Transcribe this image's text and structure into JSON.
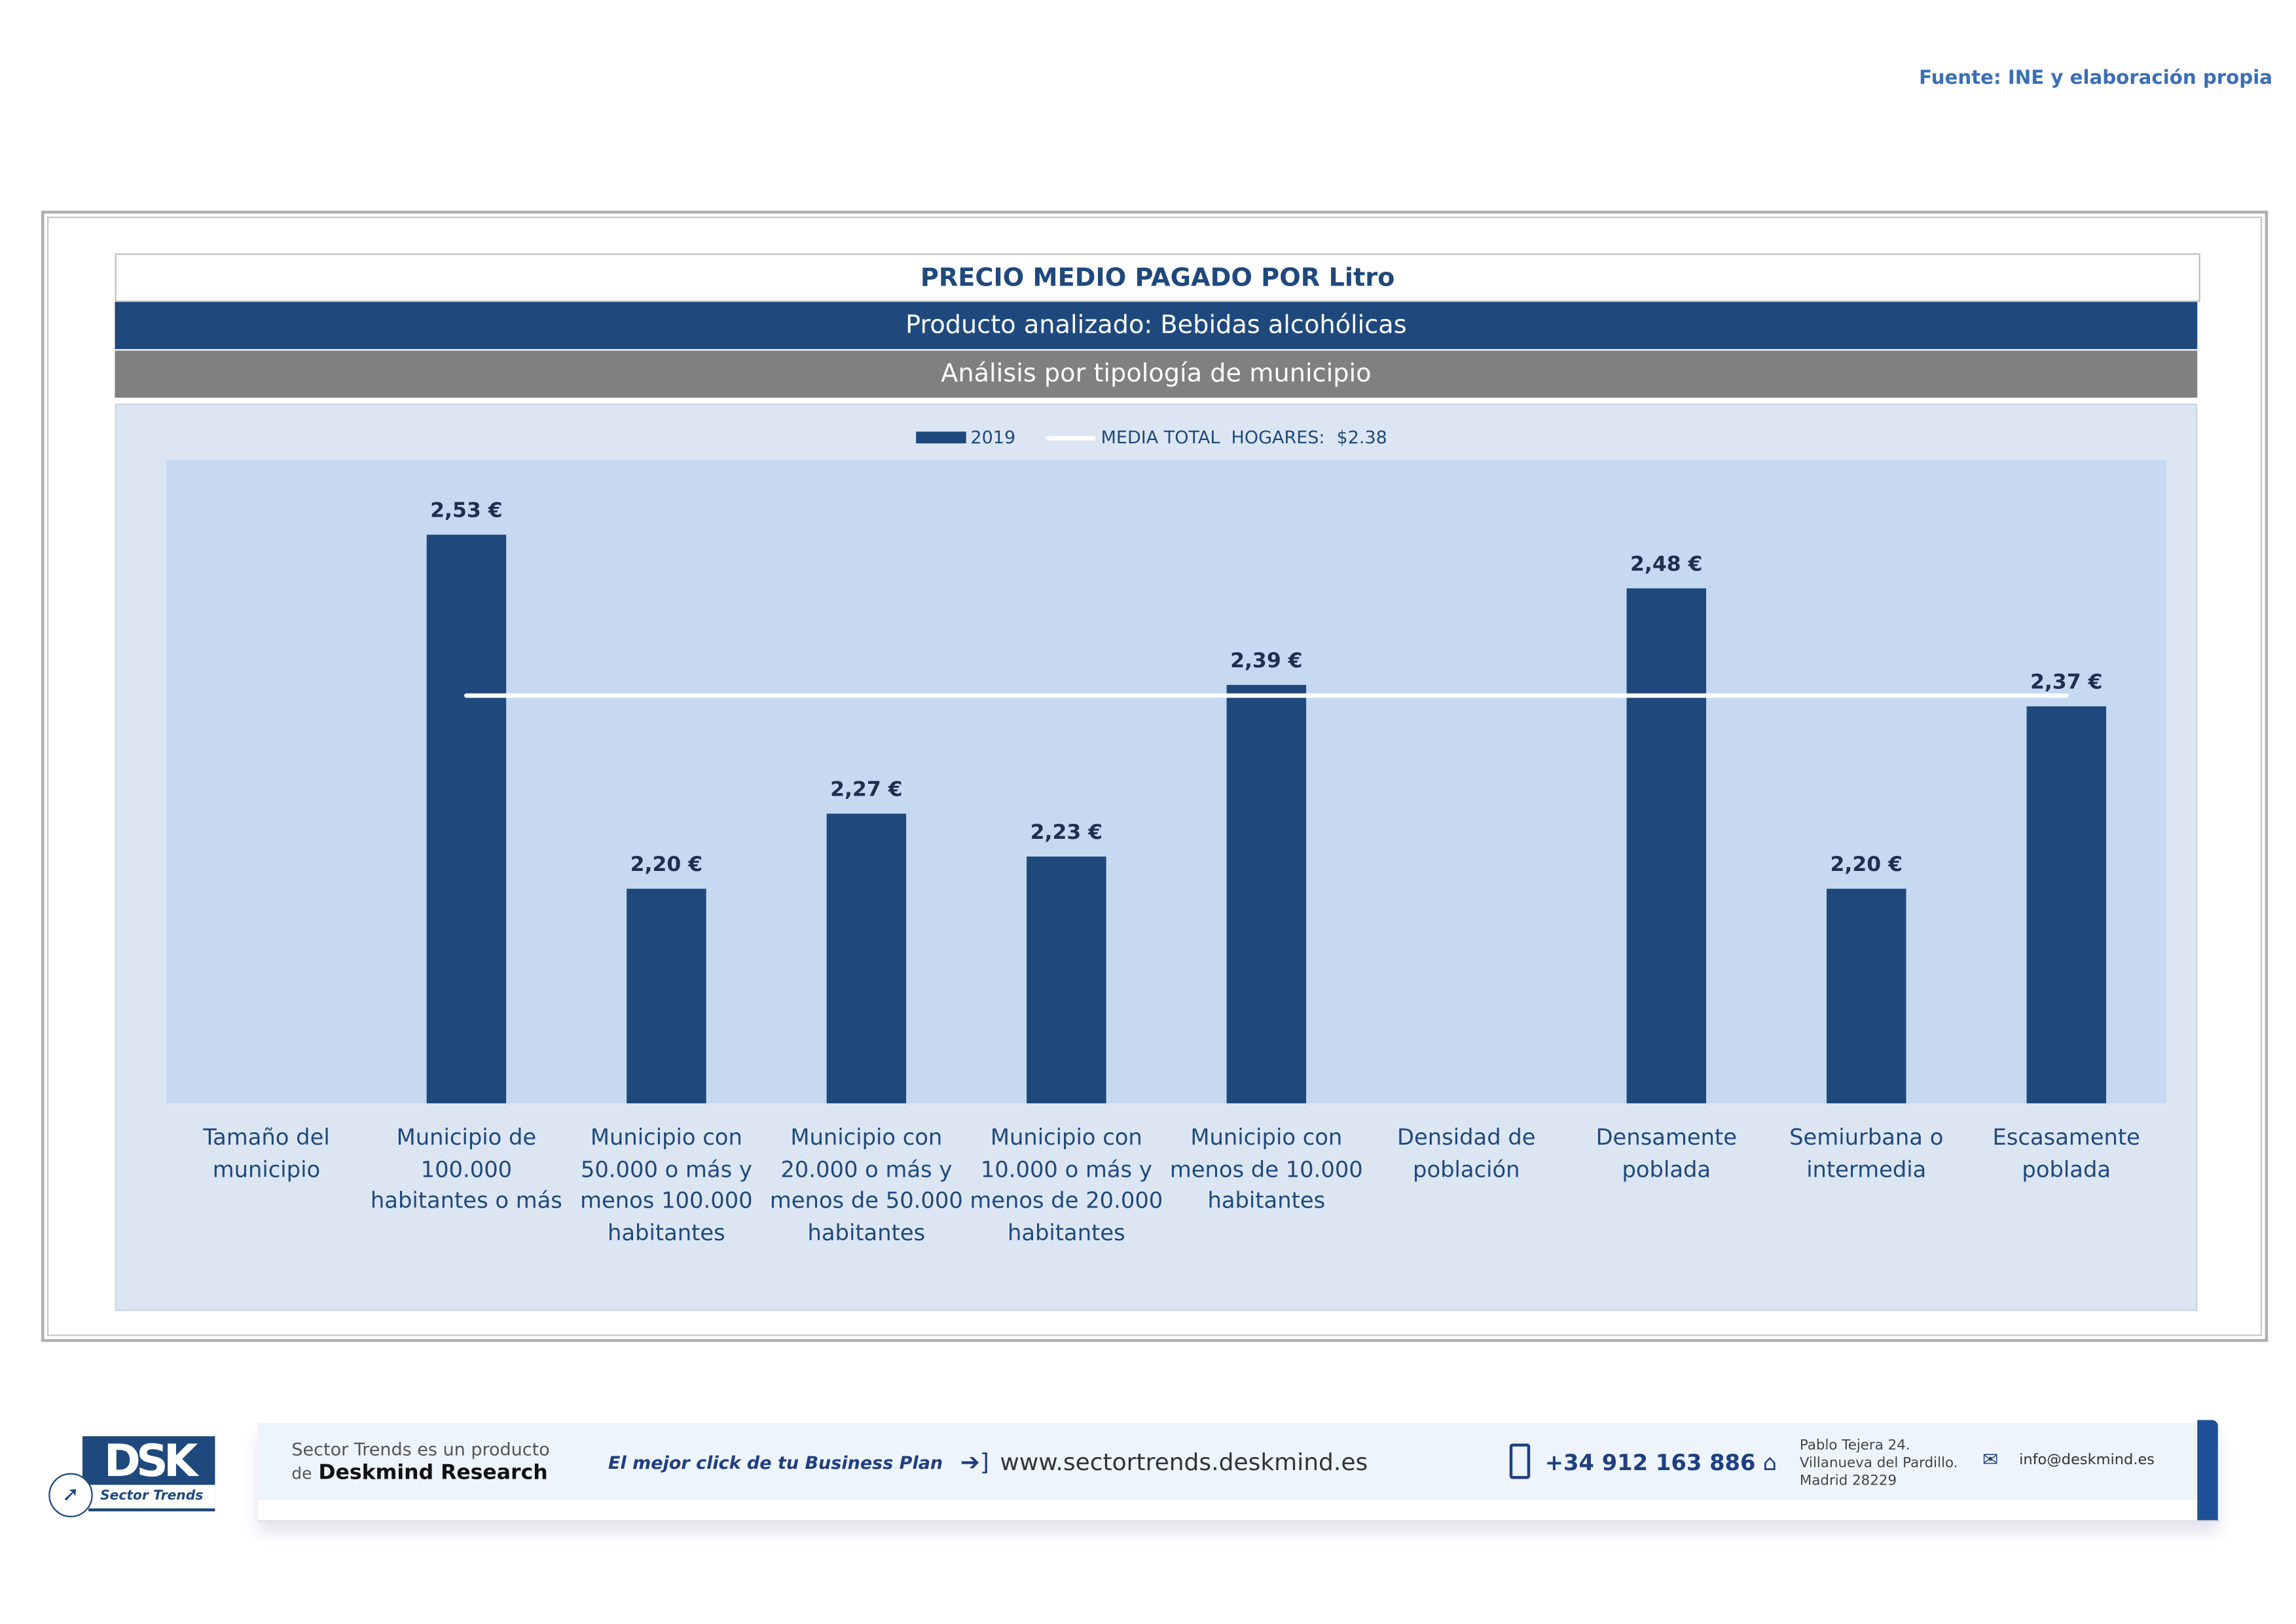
{
  "source": "Fuente: INE y elaboración propia",
  "title": "PRECIO MEDIO PAGADO POR Litro",
  "subtitle": "Producto analizado: Bebidas alcohólicas",
  "subtitle2": "Análisis por tipología de municipio",
  "colors": {
    "bar": "#1f497d",
    "plot_bg": "#c6d9f1",
    "mean_line": "#ffffff"
  },
  "chart_data": {
    "type": "bar",
    "title": "PRECIO MEDIO PAGADO POR Litro",
    "categories": [
      "Tamaño del municipio",
      "Municipio de 100.000 habitantes o más",
      "Municipio con 50.000 o más y menos 100.000 habitantes",
      "Municipio con 20.000 o más y menos de 50.000 habitantes",
      "Municipio con 10.000 o más y menos de 20.000 habitantes",
      "Municipio con menos de 10.000 habitantes",
      "Densidad de población",
      "Densamente poblada",
      "Semiurbana o intermedia",
      "Escasamente poblada"
    ],
    "series": [
      {
        "name": "2019",
        "values": [
          null,
          2.53,
          2.2,
          2.27,
          2.23,
          2.39,
          null,
          2.48,
          2.2,
          2.37
        ],
        "labels": [
          "",
          "2,53 €",
          "2,20 €",
          "2,27 €",
          "2,23 €",
          "2,39 €",
          "",
          "2,48 €",
          "2,20 €",
          "2,37 €"
        ]
      }
    ],
    "reference_line": {
      "name": "MEDIA TOTAL  HOGARES:",
      "label": "$2.38",
      "value": 2.38
    },
    "ylim": [
      2.0,
      2.6
    ],
    "grid": false,
    "legend": "top"
  },
  "footer": {
    "logo": "DSK",
    "logo_sub": "Sector Trends",
    "line1": "Sector Trends es un producto",
    "line2_pre": "de",
    "line2_brand": "Deskmind Research",
    "slogan": "El mejor click de tu Business Plan",
    "website": "www.sectortrends.deskmind.es",
    "phone": "+34 912 163 886",
    "address": [
      "Pablo Tejera 24.",
      "Villanueva del Pardillo.",
      "Madrid 28229"
    ],
    "email": "info@deskmind.es"
  }
}
